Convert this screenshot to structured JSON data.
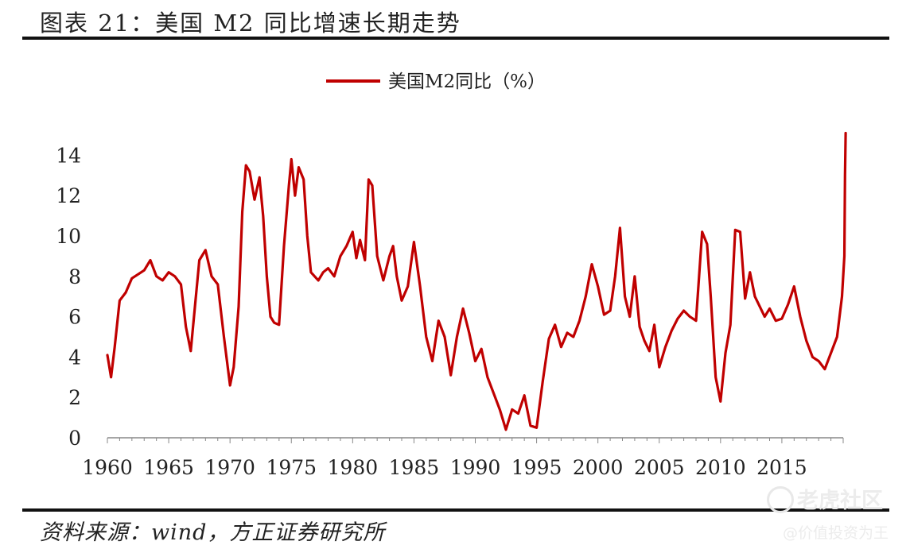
{
  "header": {
    "title": "图表 21：美国 M2 同比增速长期走势"
  },
  "footer": {
    "source": "资料来源：wind，方正证券研究所"
  },
  "watermark": {
    "brand": "老虎社区",
    "handle": "@价值投资为王"
  },
  "colors": {
    "series": "#c00000",
    "axis": "#888888"
  },
  "chart_data": {
    "type": "line",
    "title": "",
    "legend": [
      "美国M2同比（%）"
    ],
    "legend_position": "top-center",
    "xlabel": "",
    "ylabel": "",
    "xlim": [
      1960,
      2020
    ],
    "ylim": [
      0,
      15
    ],
    "xticks": [
      "1960",
      "1965",
      "1970",
      "1975",
      "1980",
      "1985",
      "1990",
      "1995",
      "2000",
      "2005",
      "2010",
      "2015"
    ],
    "yticks": [
      "0",
      "2",
      "4",
      "6",
      "8",
      "10",
      "12",
      "14"
    ],
    "grid": false,
    "series": [
      {
        "name": "美国M2同比（%）",
        "x": [
          1960.0,
          1960.3,
          1960.6,
          1961.0,
          1961.5,
          1962.0,
          1962.5,
          1963.0,
          1963.5,
          1964.0,
          1964.5,
          1965.0,
          1965.5,
          1966.0,
          1966.4,
          1966.8,
          1967.0,
          1967.5,
          1968.0,
          1968.5,
          1969.0,
          1969.5,
          1970.0,
          1970.3,
          1970.7,
          1971.0,
          1971.3,
          1971.6,
          1972.0,
          1972.4,
          1972.7,
          1973.0,
          1973.3,
          1973.6,
          1974.0,
          1974.4,
          1974.8,
          1975.0,
          1975.3,
          1975.6,
          1976.0,
          1976.3,
          1976.6,
          1976.9,
          1977.2,
          1977.6,
          1978.0,
          1978.5,
          1979.0,
          1979.5,
          1980.0,
          1980.3,
          1980.6,
          1981.0,
          1981.3,
          1981.6,
          1982.0,
          1982.5,
          1983.0,
          1983.3,
          1983.6,
          1984.0,
          1984.5,
          1985.0,
          1985.5,
          1986.0,
          1986.5,
          1987.0,
          1987.5,
          1988.0,
          1988.5,
          1989.0,
          1989.5,
          1990.0,
          1990.5,
          1991.0,
          1991.5,
          1992.0,
          1992.5,
          1993.0,
          1993.5,
          1994.0,
          1994.5,
          1995.0,
          1995.5,
          1996.0,
          1996.5,
          1997.0,
          1997.5,
          1998.0,
          1998.5,
          1999.0,
          1999.5,
          2000.0,
          2000.5,
          2001.0,
          2001.4,
          2001.8,
          2002.2,
          2002.6,
          2003.0,
          2003.4,
          2003.8,
          2004.2,
          2004.6,
          2005.0,
          2005.5,
          2006.0,
          2006.5,
          2007.0,
          2007.5,
          2008.0,
          2008.5,
          2008.9,
          2009.2,
          2009.6,
          2010.0,
          2010.4,
          2010.8,
          2011.2,
          2011.6,
          2012.0,
          2012.4,
          2012.8,
          2013.2,
          2013.6,
          2014.0,
          2014.5,
          2015.0,
          2015.5,
          2016.0,
          2016.5,
          2017.0,
          2017.5,
          2018.0,
          2018.5,
          2019.0,
          2019.5,
          2019.9,
          2020.1,
          2020.15,
          2020.2
        ],
        "values": [
          4.1,
          3.0,
          4.5,
          6.8,
          7.2,
          7.9,
          8.1,
          8.3,
          8.8,
          8.0,
          7.8,
          8.2,
          8.0,
          7.6,
          5.5,
          4.3,
          5.6,
          8.8,
          9.3,
          8.0,
          7.6,
          5.0,
          2.6,
          3.5,
          6.5,
          11.2,
          13.5,
          13.2,
          11.8,
          12.9,
          11.0,
          8.0,
          6.0,
          5.7,
          5.6,
          9.5,
          12.5,
          13.8,
          12.0,
          13.4,
          12.8,
          10.0,
          8.2,
          8.0,
          7.8,
          8.2,
          8.4,
          8.0,
          9.0,
          9.5,
          10.2,
          8.9,
          9.8,
          8.8,
          12.8,
          12.5,
          9.0,
          7.8,
          9.0,
          9.5,
          8.0,
          6.8,
          7.5,
          9.7,
          7.5,
          5.0,
          3.8,
          5.8,
          5.0,
          3.1,
          5.0,
          6.4,
          5.2,
          3.8,
          4.4,
          3.0,
          2.2,
          1.4,
          0.4,
          1.4,
          1.2,
          2.1,
          0.6,
          0.5,
          2.8,
          4.9,
          5.6,
          4.5,
          5.2,
          5.0,
          5.8,
          7.0,
          8.6,
          7.5,
          6.1,
          6.3,
          8.0,
          10.4,
          7.0,
          6.0,
          8.0,
          5.5,
          4.8,
          4.3,
          5.6,
          3.5,
          4.5,
          5.3,
          5.9,
          6.3,
          6.0,
          5.8,
          10.2,
          9.6,
          7.0,
          3.0,
          1.8,
          4.2,
          5.6,
          10.3,
          10.2,
          6.9,
          8.2,
          7.0,
          6.5,
          6.0,
          6.4,
          5.8,
          5.9,
          6.6,
          7.5,
          6.0,
          4.8,
          4.0,
          3.8,
          3.4,
          4.2,
          5.0,
          7.0,
          9.0,
          13.0,
          15.1
        ]
      }
    ]
  }
}
